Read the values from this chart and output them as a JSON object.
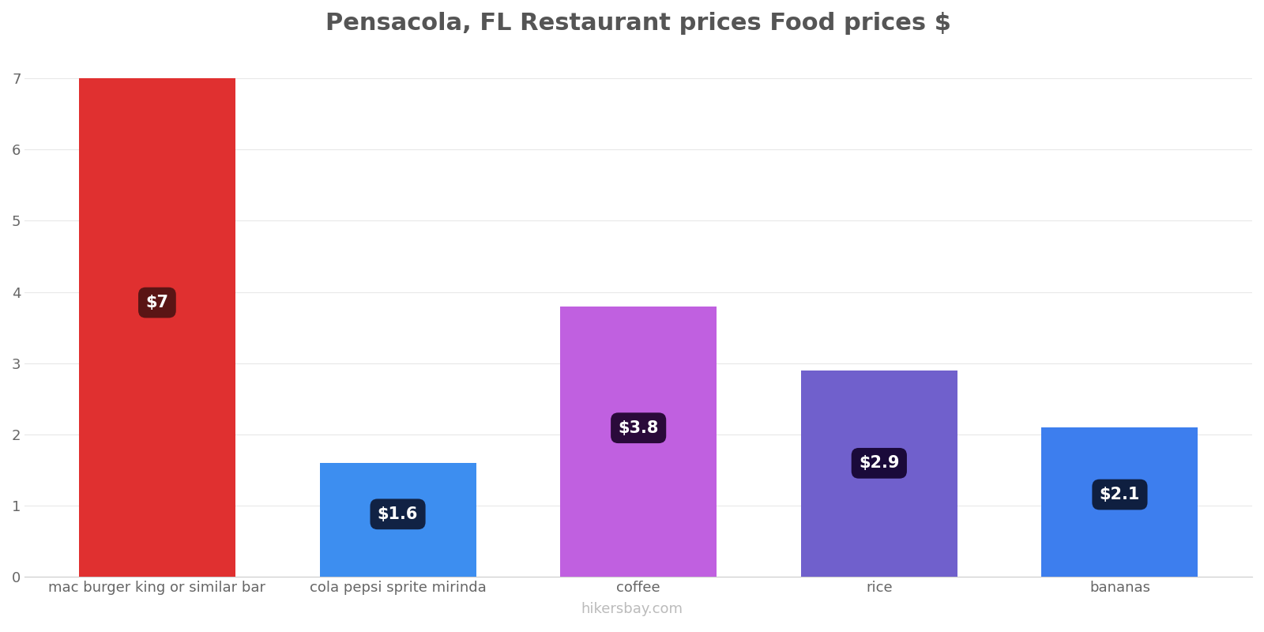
{
  "title": "Pensacola, FL Restaurant prices Food prices $",
  "categories": [
    "mac burger king or similar bar",
    "cola pepsi sprite mirinda",
    "coffee",
    "rice",
    "bananas"
  ],
  "values": [
    7.0,
    1.6,
    3.8,
    2.9,
    2.1
  ],
  "bar_colors": [
    "#e03030",
    "#3d8ef0",
    "#c060e0",
    "#7060cc",
    "#3d7eee"
  ],
  "label_texts": [
    "$7",
    "$1.6",
    "$3.8",
    "$2.9",
    "$2.1"
  ],
  "label_box_colors": [
    "#5a1515",
    "#112244",
    "#2a0a3a",
    "#1a0a3a",
    "#0f1f40"
  ],
  "ylim": [
    0,
    7.4
  ],
  "yticks": [
    0,
    1,
    2,
    3,
    4,
    5,
    6,
    7
  ],
  "watermark": "hikersbay.com",
  "title_fontsize": 22,
  "tick_fontsize": 13,
  "label_fontsize": 15,
  "watermark_fontsize": 13,
  "background_color": "#ffffff"
}
